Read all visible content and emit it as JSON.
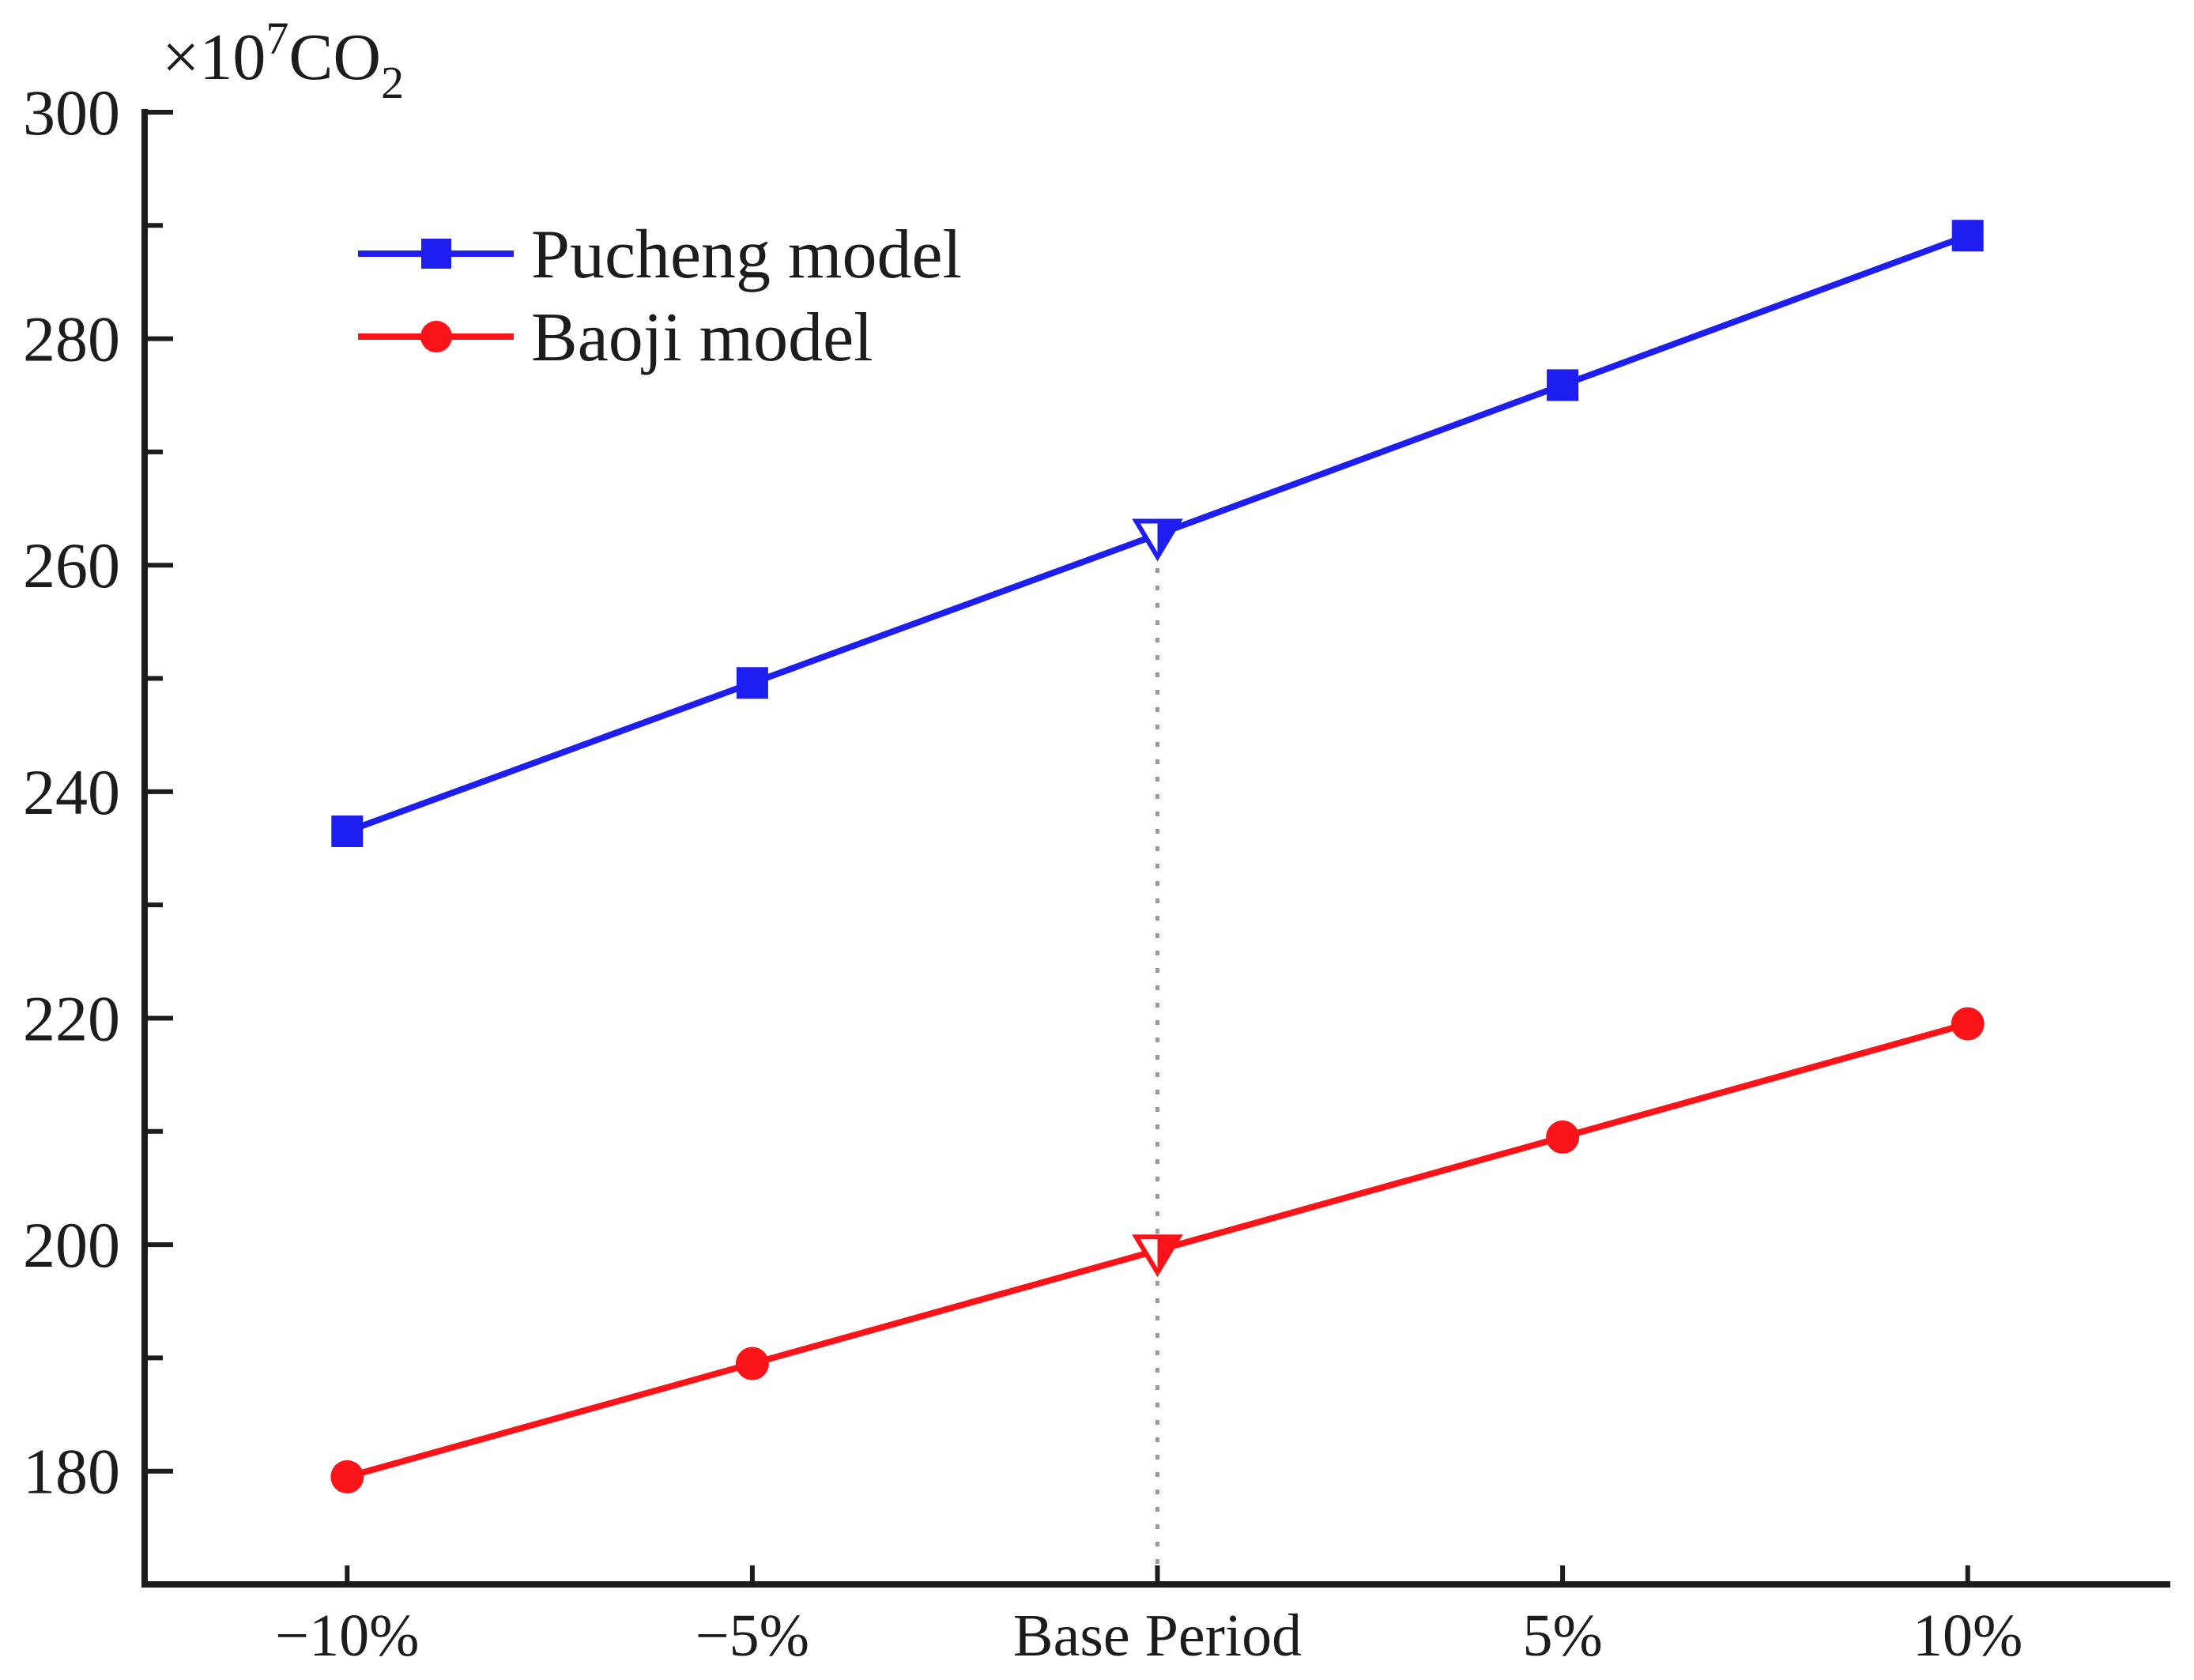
{
  "chart_data": {
    "type": "line",
    "title": "",
    "ylabel": "×10⁷CO₂",
    "ylabel_parts": {
      "prefix": "×10",
      "superscript": "7",
      "body": "CO",
      "subscript": "2"
    },
    "xlabel": "",
    "categories": [
      "−10%",
      "−5%",
      "Base Period",
      "5%",
      "10%"
    ],
    "base_period_index": 2,
    "series": [
      {
        "name": "Pucheng model",
        "color": "#1e1ef0",
        "marker": "square",
        "values": [
          236.5,
          249.6,
          262.7,
          275.9,
          289.1
        ]
      },
      {
        "name": "Baoji model",
        "color": "#fa1419",
        "marker": "circle",
        "values": [
          179.5,
          189.5,
          199.5,
          209.5,
          219.5
        ]
      }
    ],
    "base_period_marker": "half-open-down-triangle",
    "yticks": [
      300,
      280,
      260,
      240,
      220,
      200,
      180
    ],
    "minor_yticks": [
      290,
      270,
      250,
      230,
      210,
      190
    ],
    "ylim": [
      170,
      300
    ],
    "grid": false,
    "legend": {
      "position": "upper-left-inside",
      "entries": [
        "Pucheng model",
        "Baoji model"
      ]
    },
    "annotations": [
      {
        "type": "vertical-dotted-guide",
        "category": "Base Period",
        "color": "#9a9a9a"
      }
    ],
    "axis_color": "#1c1c1c"
  }
}
